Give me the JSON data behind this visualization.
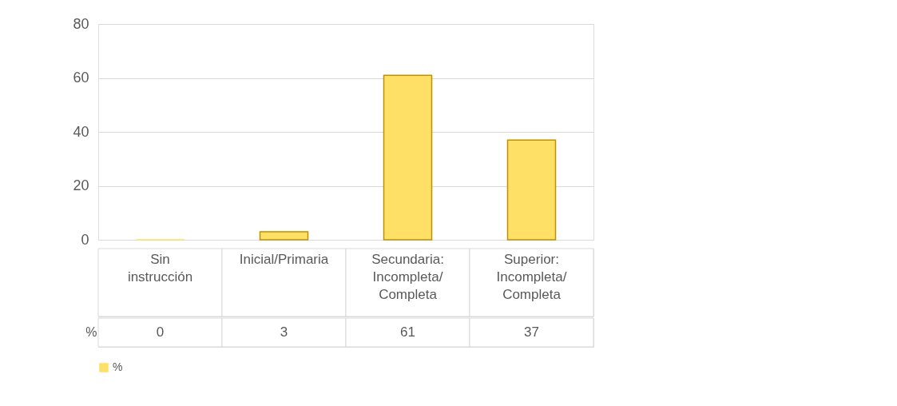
{
  "chart_data": {
    "type": "bar",
    "categories": [
      "Sin instrucción",
      "Inicial/Primaria",
      "Secundaria: Incompleta/ Completa",
      "Superior: Incompleta/ Completa"
    ],
    "series": [
      {
        "name": "%",
        "color": "#ffe066",
        "values": [
          0,
          3,
          61,
          37
        ]
      }
    ],
    "ylim": [
      0,
      80
    ],
    "yticks": [
      0,
      20,
      40,
      60,
      80
    ],
    "grid": "y",
    "legend": "bottom",
    "data_labels": true
  }
}
